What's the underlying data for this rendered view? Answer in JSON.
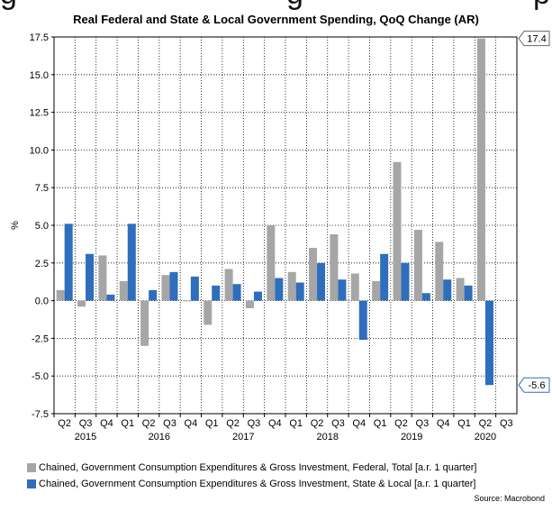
{
  "header": {
    "cut_text": "g",
    "cut_text2": "g",
    "cut_text3": "p"
  },
  "chart_data": {
    "type": "bar",
    "title": "Real Federal and State & Local Government Spending, QoQ Change (AR)",
    "ylabel": "%",
    "ylim": [
      -7.5,
      17.5
    ],
    "yticks": [
      "17.5",
      "15.0",
      "12.5",
      "10.0",
      "7.5",
      "5.0",
      "2.5",
      "0.0",
      "-2.5",
      "-5.0",
      "-7.5"
    ],
    "grid": true,
    "categories": [
      "Q2",
      "Q3",
      "Q4",
      "Q1",
      "Q2",
      "Q3",
      "Q4",
      "Q1",
      "Q2",
      "Q3",
      "Q4",
      "Q1",
      "Q2",
      "Q3",
      "Q4",
      "Q1",
      "Q2",
      "Q3",
      "Q4",
      "Q1",
      "Q2",
      "Q3"
    ],
    "years": [
      {
        "label": "2015",
        "center_index": 1
      },
      {
        "label": "2016",
        "center_index": 4.5
      },
      {
        "label": "2017",
        "center_index": 8.5
      },
      {
        "label": "2018",
        "center_index": 12.5
      },
      {
        "label": "2019",
        "center_index": 16.5
      },
      {
        "label": "2020",
        "center_index": 20
      }
    ],
    "series": [
      {
        "name": "Chained, Government Consumption Expenditures & Gross Investment, Federal, Total [a.r. 1 quarter]",
        "color": "#a6a6a6",
        "values": [
          0.7,
          -0.4,
          3.0,
          1.3,
          -3.0,
          1.7,
          0.0,
          -1.6,
          2.1,
          -0.5,
          5.0,
          1.9,
          3.5,
          4.4,
          1.8,
          1.3,
          9.2,
          4.7,
          3.9,
          1.5,
          17.4,
          null
        ]
      },
      {
        "name": "Chained, Government Consumption Expenditures & Gross Investment, State & Local [a.r. 1 quarter]",
        "color": "#2e6ebd",
        "values": [
          5.1,
          3.1,
          0.4,
          5.1,
          0.7,
          1.9,
          1.6,
          1.0,
          1.1,
          0.6,
          1.5,
          1.2,
          2.5,
          1.4,
          -2.6,
          3.1,
          2.5,
          0.5,
          1.4,
          1.0,
          -5.6,
          null
        ]
      }
    ],
    "callouts": [
      {
        "label": "17.4",
        "value": 17.4,
        "series": 0
      },
      {
        "label": "-5.6",
        "value": -5.6,
        "series": 1
      }
    ],
    "source": "Source: Macrobond"
  }
}
